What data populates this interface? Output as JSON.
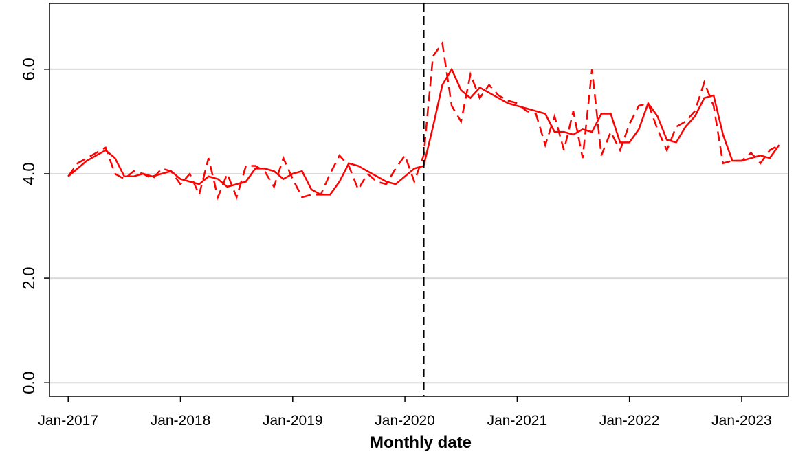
{
  "chart_data": {
    "type": "line",
    "xlabel": "Monthly date",
    "x": [
      "2017-01",
      "2017-02",
      "2017-03",
      "2017-04",
      "2017-05",
      "2017-06",
      "2017-07",
      "2017-08",
      "2017-09",
      "2017-10",
      "2017-11",
      "2017-12",
      "2018-01",
      "2018-02",
      "2018-03",
      "2018-04",
      "2018-05",
      "2018-06",
      "2018-07",
      "2018-08",
      "2018-09",
      "2018-10",
      "2018-11",
      "2018-12",
      "2019-01",
      "2019-02",
      "2019-03",
      "2019-04",
      "2019-05",
      "2019-06",
      "2019-07",
      "2019-08",
      "2019-09",
      "2019-10",
      "2019-11",
      "2019-12",
      "2020-01",
      "2020-02",
      "2020-03",
      "2020-04",
      "2020-05",
      "2020-06",
      "2020-07",
      "2020-08",
      "2020-09",
      "2020-10",
      "2020-11",
      "2020-12",
      "2021-01",
      "2021-02",
      "2021-03",
      "2021-04",
      "2021-05",
      "2021-06",
      "2021-07",
      "2021-08",
      "2021-09",
      "2021-10",
      "2021-11",
      "2021-12",
      "2022-01",
      "2022-02",
      "2022-03",
      "2022-04",
      "2022-05",
      "2022-06",
      "2022-07",
      "2022-08",
      "2022-09",
      "2022-10",
      "2022-11",
      "2022-12",
      "2023-01",
      "2023-02",
      "2023-03",
      "2023-04",
      "2023-05"
    ],
    "series": [
      {
        "color": "#ff0000",
        "dash": false,
        "values": [
          3.95,
          4.1,
          4.25,
          4.35,
          4.45,
          4.3,
          3.95,
          3.95,
          4.0,
          3.95,
          4.0,
          4.05,
          3.9,
          3.85,
          3.8,
          3.95,
          3.9,
          3.75,
          3.8,
          3.85,
          4.1,
          4.1,
          4.05,
          3.9,
          4.0,
          4.05,
          3.7,
          3.6,
          3.6,
          3.85,
          4.2,
          4.15,
          4.05,
          3.95,
          3.85,
          3.8,
          3.95,
          4.1,
          4.15,
          4.9,
          5.7,
          6.0,
          5.6,
          5.45,
          5.65,
          5.55,
          5.45,
          5.35,
          5.3,
          5.25,
          5.2,
          5.15,
          4.8,
          4.8,
          4.75,
          4.85,
          4.8,
          5.15,
          5.15,
          4.6,
          4.6,
          4.85,
          5.35,
          5.1,
          4.65,
          4.6,
          4.9,
          5.1,
          5.45,
          5.5,
          4.75,
          4.25,
          4.25,
          4.3,
          4.35,
          4.3,
          4.55
        ]
      },
      {
        "color": "#ff0000",
        "dash": true,
        "values": [
          3.95,
          4.2,
          4.3,
          4.4,
          4.5,
          4.0,
          3.9,
          4.05,
          4.0,
          3.9,
          4.1,
          4.05,
          3.8,
          4.0,
          3.6,
          4.3,
          3.55,
          4.0,
          3.55,
          4.15,
          4.15,
          4.05,
          3.75,
          4.3,
          3.9,
          3.55,
          3.6,
          3.6,
          4.0,
          4.35,
          4.15,
          3.7,
          4.0,
          3.85,
          3.8,
          4.1,
          4.35,
          3.85,
          4.35,
          6.25,
          6.5,
          5.3,
          5.0,
          5.9,
          5.45,
          5.7,
          5.5,
          5.4,
          5.35,
          5.2,
          5.15,
          4.55,
          5.1,
          4.45,
          5.2,
          4.3,
          6.0,
          4.35,
          4.8,
          4.45,
          4.95,
          5.3,
          5.35,
          4.85,
          4.45,
          4.9,
          5.0,
          5.2,
          5.75,
          5.3,
          4.2,
          4.25,
          4.25,
          4.4,
          4.2,
          4.45,
          4.55
        ]
      }
    ],
    "vline": "2020-03",
    "xlim": [
      "2016-11",
      "2023-06"
    ],
    "xticks": [
      {
        "value": "2017-01",
        "label": "Jan-2017"
      },
      {
        "value": "2018-01",
        "label": "Jan-2018"
      },
      {
        "value": "2019-01",
        "label": "Jan-2019"
      },
      {
        "value": "2020-01",
        "label": "Jan-2020"
      },
      {
        "value": "2021-01",
        "label": "Jan-2021"
      },
      {
        "value": "2022-01",
        "label": "Jan-2022"
      },
      {
        "value": "2023-01",
        "label": "Jan-2023"
      }
    ],
    "ylim": [
      -0.26,
      7.26
    ],
    "yticks": [
      {
        "value": 0,
        "label": "0.0"
      },
      {
        "value": 2,
        "label": "2.0"
      },
      {
        "value": 4,
        "label": "4.0"
      },
      {
        "value": 6,
        "label": "6.0"
      }
    ],
    "grid": true
  }
}
